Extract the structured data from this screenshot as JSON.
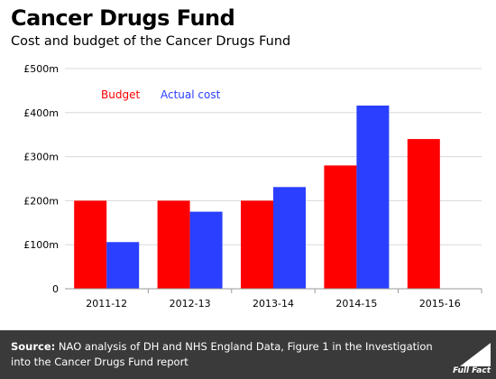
{
  "header": {
    "title": "Cancer Drugs Fund",
    "subtitle": "Cost and budget of the Cancer Drugs Fund"
  },
  "chart_data": {
    "type": "bar",
    "categories": [
      "2011-12",
      "2012-13",
      "2013-14",
      "2014-15",
      "2015-16"
    ],
    "series": [
      {
        "name": "Budget",
        "color": "#ff0000",
        "values": [
          200,
          200,
          200,
          280,
          340
        ]
      },
      {
        "name": "Actual cost",
        "color": "#2a3fff",
        "values": [
          106,
          175,
          231,
          416,
          null
        ]
      }
    ],
    "yticks": [
      "0",
      "£100m",
      "£200m",
      "£300m",
      "£400m",
      "£500m"
    ],
    "ylim": [
      0,
      500
    ],
    "grid": true,
    "legend": "top-left"
  },
  "footer": {
    "source_label": "Source:",
    "source_text": "NAO analysis of DH and NHS England Data, Figure 1 in the Investigation into the Cancer Drugs Fund report",
    "logo_text": "Full Fact"
  }
}
